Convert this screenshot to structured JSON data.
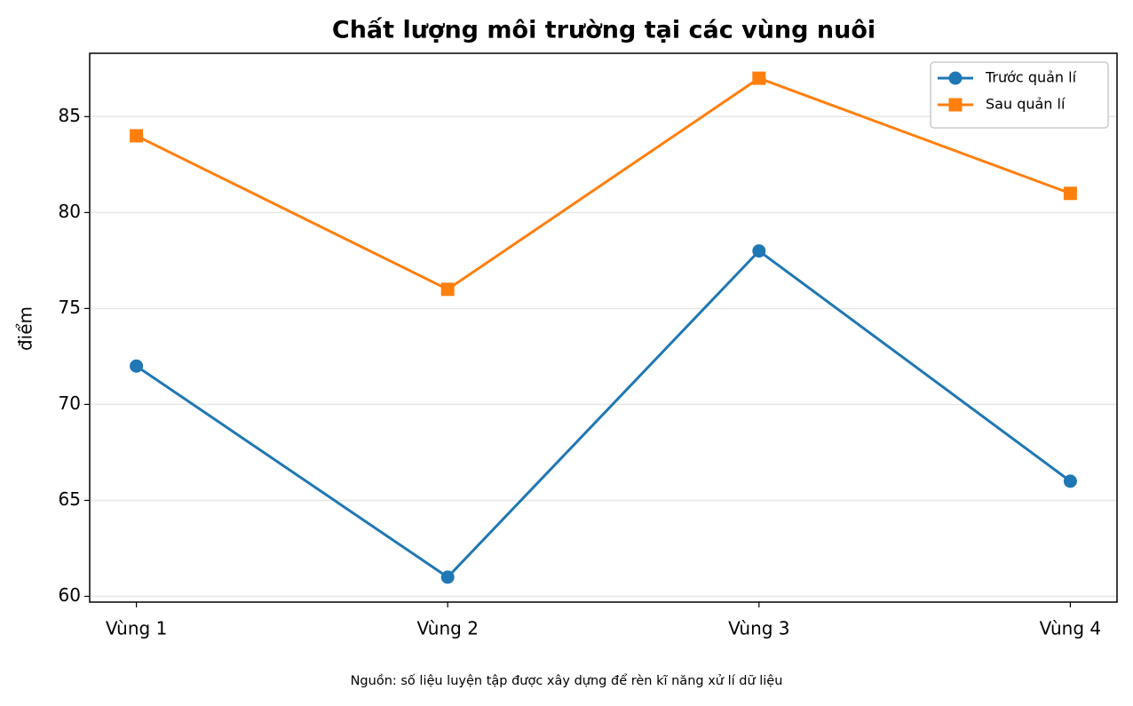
{
  "chart_data": {
    "type": "line",
    "title": "Chất lượng môi trường tại các vùng nuôi",
    "ylabel": "điểm",
    "note": "Nguồn: số liệu luyện tập được xây dựng để rèn kĩ năng xử lí dữ liệu",
    "categories": [
      "Vùng 1",
      "Vùng 2",
      "Vùng 3",
      "Vùng 4"
    ],
    "series": [
      {
        "name": "Trước quản lí",
        "color": "#1f77b4",
        "marker": "circle",
        "values": [
          72,
          61,
          78,
          66
        ]
      },
      {
        "name": "Sau quản lí",
        "color": "#ff7f0e",
        "marker": "square",
        "values": [
          84,
          76,
          87,
          81
        ]
      }
    ],
    "ylim": [
      59.7,
      88.3
    ],
    "yticks": [
      60,
      65,
      70,
      75,
      80,
      85
    ],
    "grid": true,
    "legend": "upper-right"
  }
}
